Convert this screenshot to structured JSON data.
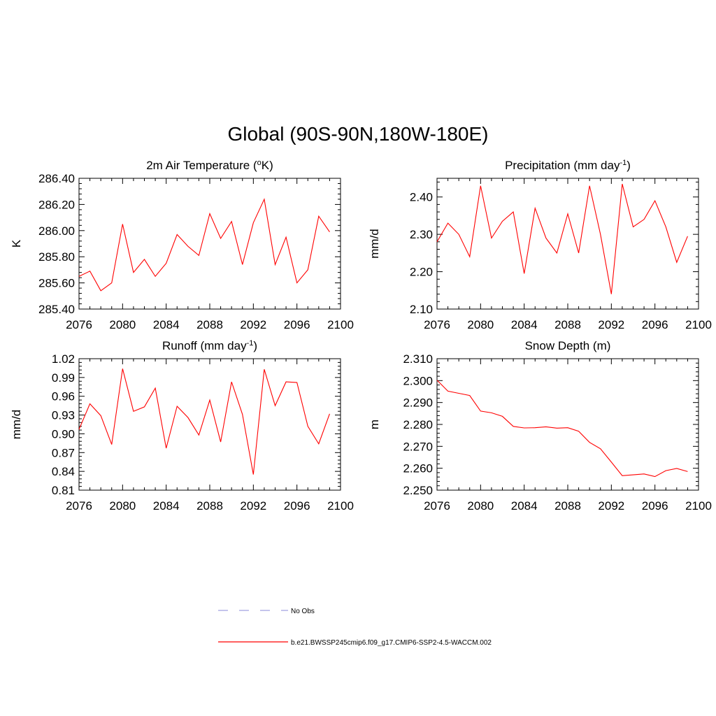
{
  "page_title": "Global (90S-90N,180W-180E)",
  "colors": {
    "model_line": "#ff0000",
    "obs_line": "#a0a0e0",
    "axis": "#000000"
  },
  "legend": {
    "entries": [
      {
        "label": "No Obs",
        "style": "dashed",
        "color": "#a0a0e0"
      },
      {
        "label": "b.e21.BWSSP245cmip6.f09_g17.CMIP6-SSP2-4.5-WACCM.002",
        "style": "solid",
        "color": "#ff0000"
      }
    ]
  },
  "chart_data": [
    {
      "type": "line",
      "title": "2m Air Temperature (",
      "title_sup": "o",
      "title_suffix": "K)",
      "ylabel": "K",
      "xlim": [
        2076,
        2100
      ],
      "ylim": [
        285.4,
        286.4
      ],
      "xticks": [
        2076,
        2080,
        2084,
        2088,
        2092,
        2096,
        2100
      ],
      "yticks": [
        285.4,
        285.6,
        285.8,
        286.0,
        286.2,
        286.4
      ],
      "ytick_labels": [
        "285.40",
        "285.60",
        "285.80",
        "286.00",
        "286.20",
        "286.40"
      ],
      "series": [
        {
          "name": "b.e21.BWSSP245cmip6.f09_g17.CMIP6-SSP2-4.5-WACCM.002",
          "x": [
            2076,
            2077,
            2078,
            2079,
            2080,
            2081,
            2082,
            2083,
            2084,
            2085,
            2086,
            2087,
            2088,
            2089,
            2090,
            2091,
            2092,
            2093,
            2094,
            2095,
            2096,
            2097,
            2098,
            2099
          ],
          "values": [
            285.65,
            285.69,
            285.54,
            285.6,
            286.05,
            285.68,
            285.78,
            285.65,
            285.75,
            285.97,
            285.88,
            285.81,
            286.13,
            285.94,
            286.07,
            285.74,
            286.06,
            286.24,
            285.74,
            285.95,
            285.6,
            285.7,
            286.11,
            285.99
          ]
        }
      ]
    },
    {
      "type": "line",
      "title": "Precipitation (mm day",
      "title_sup": "-1",
      "title_suffix": ")",
      "ylabel": "mm/d",
      "xlim": [
        2076,
        2100
      ],
      "ylim": [
        2.1,
        2.45
      ],
      "xticks": [
        2076,
        2080,
        2084,
        2088,
        2092,
        2096,
        2100
      ],
      "yticks": [
        2.1,
        2.2,
        2.3,
        2.4
      ],
      "ytick_labels": [
        "2.10",
        "2.20",
        "2.30",
        "2.40"
      ],
      "series": [
        {
          "name": "b.e21.BWSSP245cmip6.f09_g17.CMIP6-SSP2-4.5-WACCM.002",
          "x": [
            2076,
            2077,
            2078,
            2079,
            2080,
            2081,
            2082,
            2083,
            2084,
            2085,
            2086,
            2087,
            2088,
            2089,
            2090,
            2091,
            2092,
            2093,
            2094,
            2095,
            2096,
            2097,
            2098,
            2099
          ],
          "values": [
            2.28,
            2.33,
            2.3,
            2.24,
            2.43,
            2.29,
            2.335,
            2.36,
            2.195,
            2.37,
            2.29,
            2.25,
            2.355,
            2.25,
            2.43,
            2.3,
            2.14,
            2.435,
            2.32,
            2.34,
            2.39,
            2.32,
            2.225,
            2.295
          ]
        }
      ]
    },
    {
      "type": "line",
      "title": "Runoff (mm day",
      "title_sup": "-1",
      "title_suffix": ")",
      "ylabel": "mm/d",
      "xlim": [
        2076,
        2100
      ],
      "ylim": [
        0.81,
        1.02
      ],
      "xticks": [
        2076,
        2080,
        2084,
        2088,
        2092,
        2096,
        2100
      ],
      "yticks": [
        0.81,
        0.84,
        0.87,
        0.9,
        0.93,
        0.96,
        0.99,
        1.02
      ],
      "ytick_labels": [
        "0.81",
        "0.84",
        "0.87",
        "0.90",
        "0.93",
        "0.96",
        "0.99",
        "1.02"
      ],
      "series": [
        {
          "name": "b.e21.BWSSP245cmip6.f09_g17.CMIP6-SSP2-4.5-WACCM.002",
          "x": [
            2076,
            2077,
            2078,
            2079,
            2080,
            2081,
            2082,
            2083,
            2084,
            2085,
            2086,
            2087,
            2088,
            2089,
            2090,
            2091,
            2092,
            2093,
            2094,
            2095,
            2096,
            2097,
            2098,
            2099
          ],
          "values": [
            0.907,
            0.948,
            0.929,
            0.883,
            1.004,
            0.936,
            0.943,
            0.973,
            0.877,
            0.944,
            0.926,
            0.898,
            0.954,
            0.887,
            0.983,
            0.931,
            0.835,
            1.003,
            0.945,
            0.983,
            0.982,
            0.912,
            0.884,
            0.932
          ]
        }
      ]
    },
    {
      "type": "line",
      "title": "Snow Depth (m)",
      "title_sup": "",
      "title_suffix": "",
      "ylabel": "m",
      "xlim": [
        2076,
        2100
      ],
      "ylim": [
        2.25,
        2.31
      ],
      "xticks": [
        2076,
        2080,
        2084,
        2088,
        2092,
        2096,
        2100
      ],
      "yticks": [
        2.25,
        2.26,
        2.27,
        2.28,
        2.29,
        2.3,
        2.31
      ],
      "ytick_labels": [
        "2.250",
        "2.260",
        "2.270",
        "2.280",
        "2.290",
        "2.300",
        "2.310"
      ],
      "series": [
        {
          "name": "b.e21.BWSSP245cmip6.f09_g17.CMIP6-SSP2-4.5-WACCM.002",
          "x": [
            2076,
            2077,
            2078,
            2079,
            2080,
            2081,
            2082,
            2083,
            2084,
            2085,
            2086,
            2087,
            2088,
            2089,
            2090,
            2091,
            2092,
            2093,
            2094,
            2095,
            2096,
            2097,
            2098,
            2099
          ],
          "values": [
            2.3002,
            2.2952,
            2.2942,
            2.2932,
            2.2861,
            2.2853,
            2.2837,
            2.2791,
            2.2784,
            2.2785,
            2.2789,
            2.2783,
            2.2785,
            2.2769,
            2.2718,
            2.2689,
            2.2628,
            2.2566,
            2.257,
            2.2574,
            2.2562,
            2.2589,
            2.2599,
            2.2585
          ]
        }
      ]
    }
  ]
}
